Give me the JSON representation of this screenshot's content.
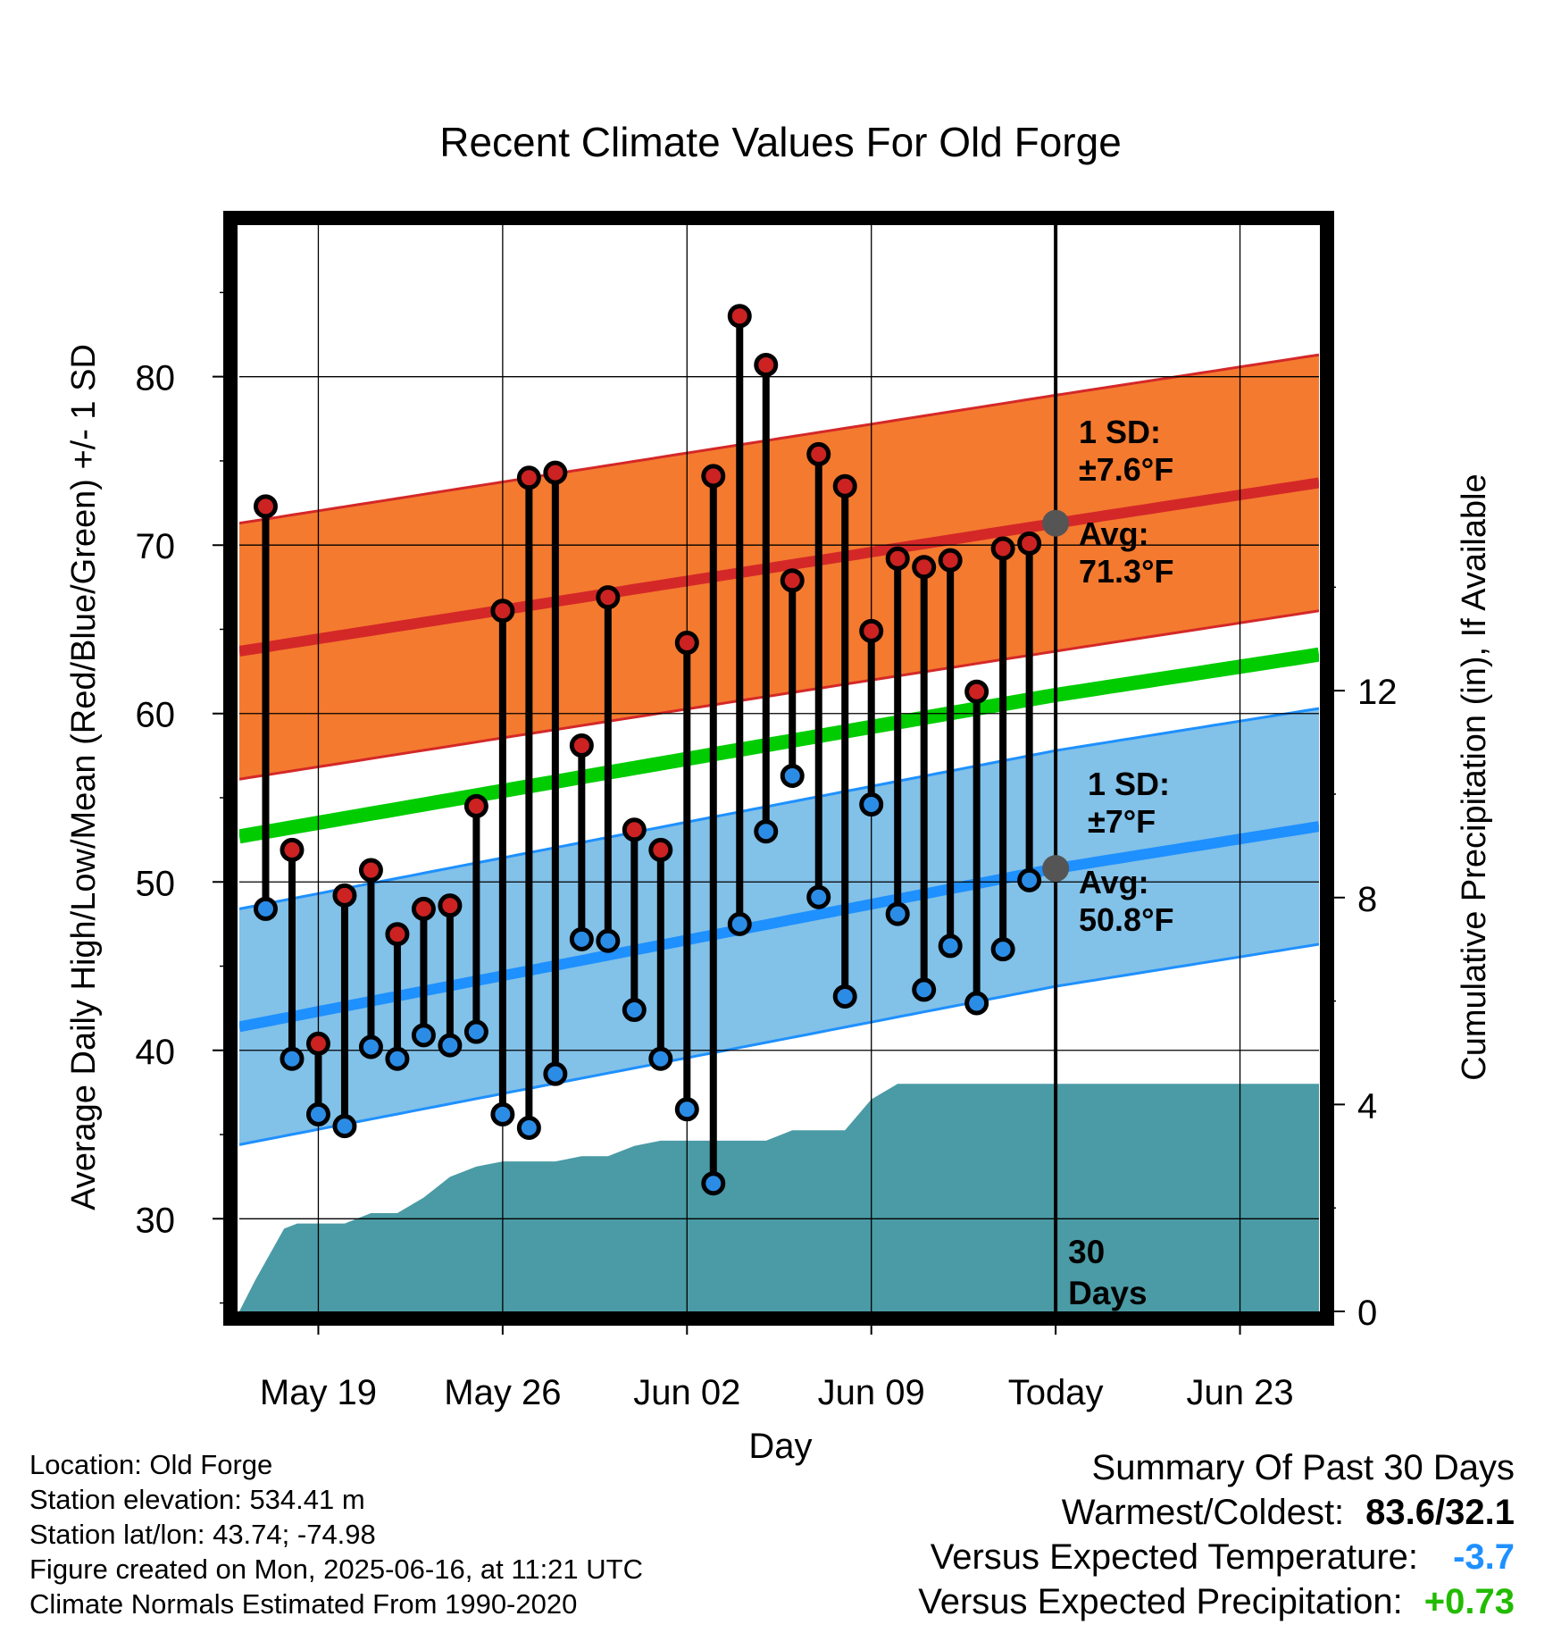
{
  "chart_data": {
    "type": "line",
    "title": "Recent Climate Values For Old Forge",
    "xlabel": "Day",
    "ylabel": "Average Daily High/Low/Mean (Red/Blue/Green) +/- 1 SD",
    "y2label": "Cumulative Precipitation (in), If Available",
    "x_tick_labels": [
      "May 19",
      "May 26",
      "Jun 02",
      "Jun 09",
      "Today",
      "Jun 23"
    ],
    "x_tick_days": [
      3,
      10,
      17,
      24,
      31,
      38
    ],
    "xlim_days": [
      0,
      41
    ],
    "ylim": [
      24.5,
      89
    ],
    "y_ticks": [
      30,
      40,
      50,
      60,
      70,
      80
    ],
    "y2lim": [
      0,
      21
    ],
    "y2_ticks": [
      0,
      4,
      8,
      12
    ],
    "grid": true,
    "today_day": 31,
    "days_since_label": "30\nDays",
    "observed_highs": [
      72.3,
      51.9,
      40.4,
      49.2,
      50.7,
      46.9,
      48.4,
      48.6,
      54.5,
      66.1,
      74.0,
      74.3,
      58.1,
      66.9,
      53.1,
      51.9,
      64.2,
      74.1,
      83.6,
      80.7,
      67.9,
      75.4,
      73.5,
      64.9,
      69.2,
      68.7,
      69.1,
      61.3,
      69.8,
      70.1
    ],
    "observed_lows": [
      48.4,
      39.5,
      36.2,
      35.5,
      40.2,
      39.5,
      40.9,
      40.3,
      41.1,
      36.2,
      35.4,
      38.6,
      46.6,
      46.5,
      42.4,
      39.5,
      36.5,
      32.1,
      47.5,
      53.0,
      56.3,
      49.1,
      43.2,
      54.6,
      48.1,
      43.6,
      46.2,
      42.8,
      46.0,
      50.1
    ],
    "normal_high": {
      "start": 63.7,
      "today": 71.3,
      "end": 73.7,
      "sd": 7.6
    },
    "normal_low": {
      "start": 41.4,
      "today": 50.8,
      "end": 53.3,
      "sd": 7.0
    },
    "normal_mean": {
      "start": 52.7,
      "today": 61.1,
      "end": 63.5
    },
    "cumulative_precip": [
      [
        0,
        0
      ],
      [
        0.6,
        0.6
      ],
      [
        1.7,
        1.6
      ],
      [
        2.2,
        1.7
      ],
      [
        4.0,
        1.7
      ],
      [
        5.0,
        1.9
      ],
      [
        6.0,
        1.9
      ],
      [
        7.0,
        2.2
      ],
      [
        8.0,
        2.6
      ],
      [
        9.0,
        2.8
      ],
      [
        10.0,
        2.9
      ],
      [
        12.0,
        2.9
      ],
      [
        13.0,
        3.0
      ],
      [
        14.0,
        3.0
      ],
      [
        15.0,
        3.2
      ],
      [
        16.0,
        3.3
      ],
      [
        20.0,
        3.3
      ],
      [
        21.0,
        3.5
      ],
      [
        23.0,
        3.5
      ],
      [
        24.0,
        4.1
      ],
      [
        25.0,
        4.4
      ],
      [
        30.0,
        4.4
      ],
      [
        31.0,
        4.4
      ],
      [
        41.0,
        4.4
      ]
    ],
    "annotations": {
      "high_sd": "1 SD:\n±7.6°F",
      "high_avg": "Avg:\n71.3°F",
      "low_sd": "1 SD:\n±7°F",
      "low_avg": "Avg:\n50.8°F"
    },
    "colors": {
      "high_band": "#f47a2f",
      "high_line": "#d42828",
      "low_band": "#82c1e8",
      "low_line": "#1e90ff",
      "mean_line": "#00cc00",
      "precip": "#4a9ba5",
      "high_dot": "#cc2222",
      "low_dot": "#2b8ce6",
      "annot": "#555555"
    }
  },
  "footer": {
    "location": "Location: Old Forge",
    "elevation": "Station elevation: 534.41 m",
    "latlon": "Station lat/lon: 43.74; -74.98",
    "created": "Figure created on Mon, 2025-06-16, at 11:21 UTC",
    "normals": "Climate Normals Estimated From 1990-2020"
  },
  "summary": {
    "heading": "Summary Of Past 30 Days",
    "warm_cold_label": "Warmest/Coldest:",
    "warm_cold_value": "83.6/32.1",
    "temp_label": "Versus Expected Temperature:",
    "temp_value": "-3.7",
    "precip_label": "Versus Expected Precipitation:",
    "precip_value": "+0.73"
  }
}
